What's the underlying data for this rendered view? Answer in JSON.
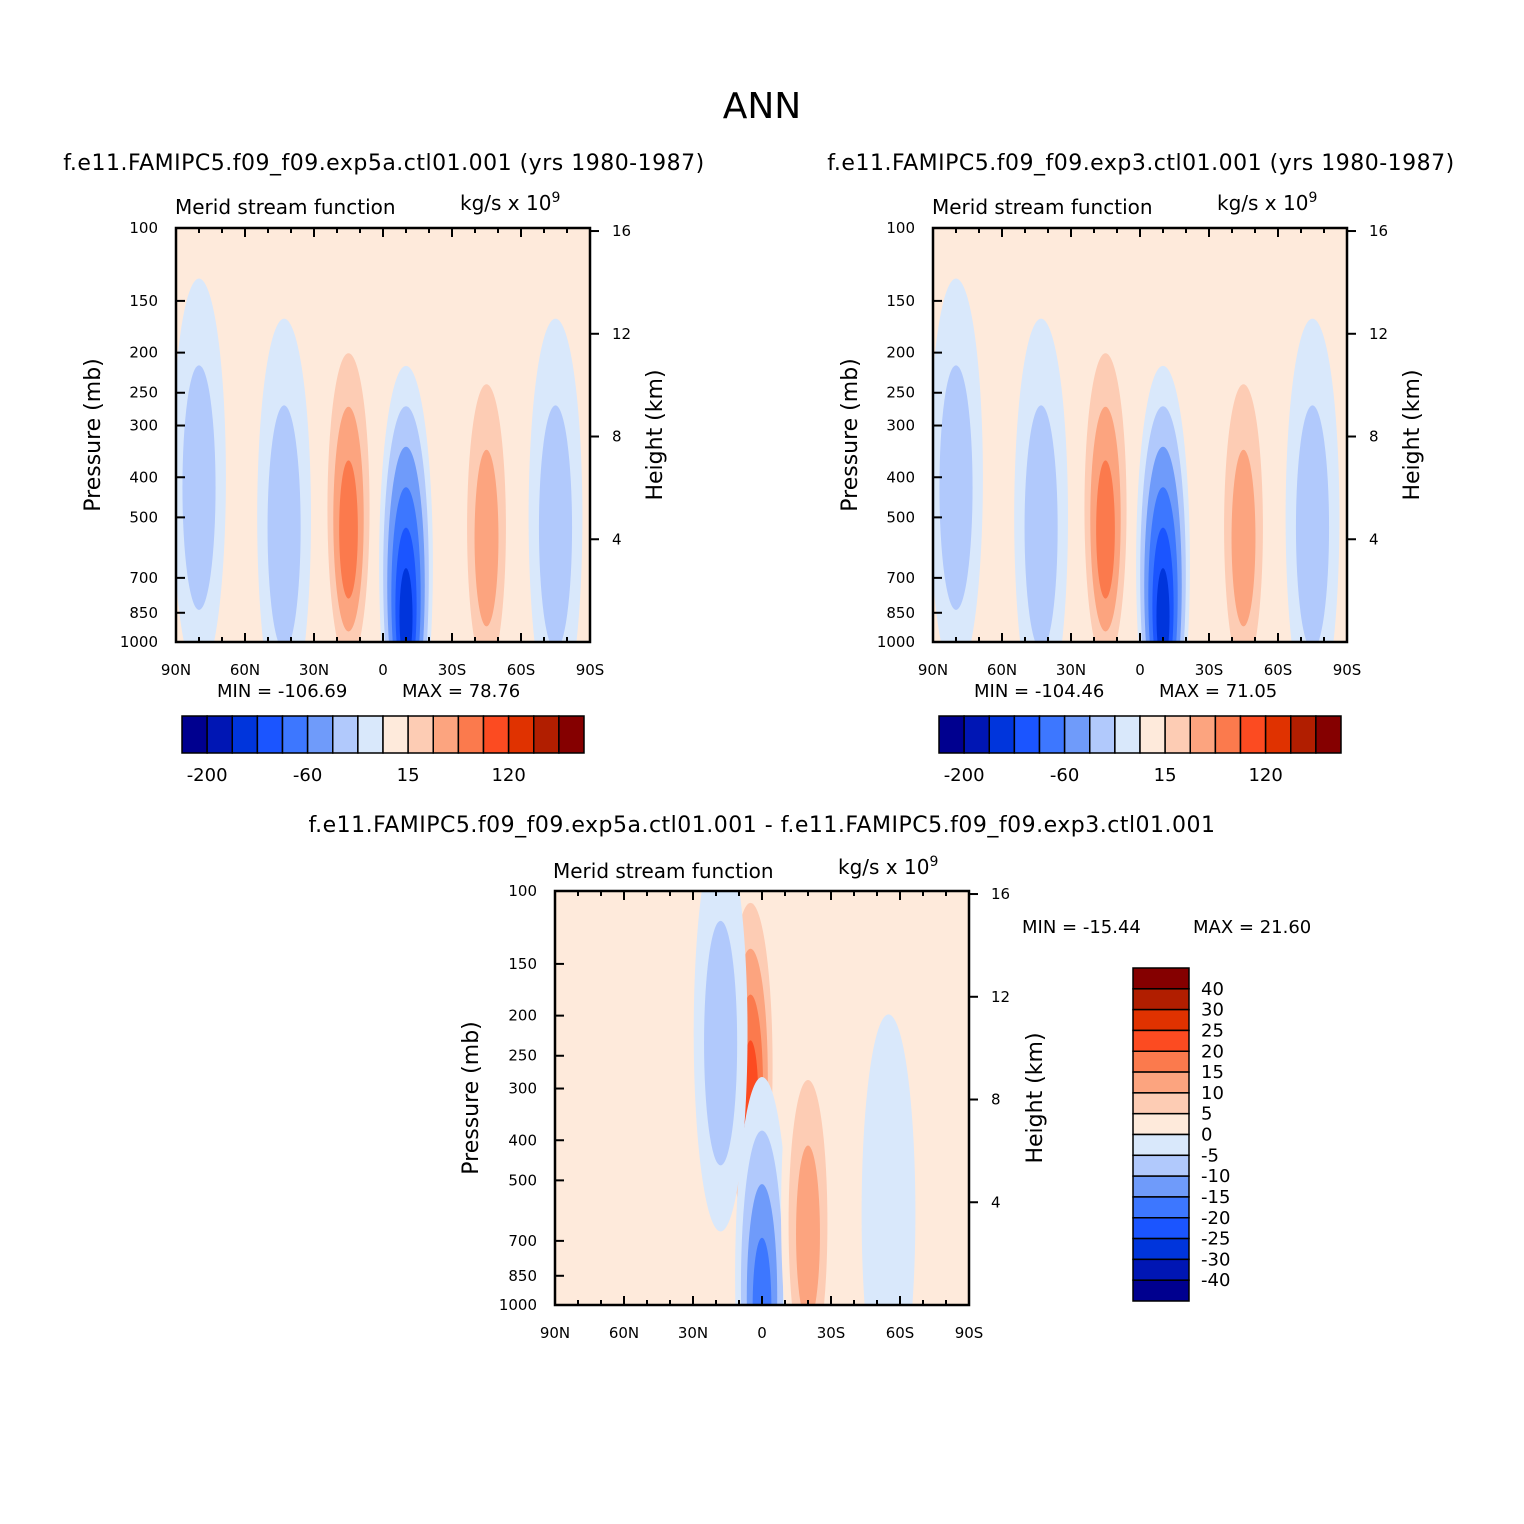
{
  "title": "ANN",
  "palette": [
    "#00008f",
    "#0016b4",
    "#0035dc",
    "#1b55ff",
    "#3d77ff",
    "#6f9bfa",
    "#b1c9fc",
    "#d9e8fb",
    "#feeadb",
    "#fdccb4",
    "#fca47f",
    "#fb7a4d",
    "#fc4b21",
    "#e03200",
    "#b11e00",
    "#850000"
  ],
  "chart_data": [
    {
      "type": "heatmap",
      "name": "panel-control-a",
      "title": "f.e11.FAMIPC5.f09_f09.exp5a.ctl01.001 (yrs 1980-1987)",
      "subtitle_left": "Merid stream function",
      "subtitle_right_base": "kg/s x 10",
      "subtitle_right_exp": "9",
      "ylabel": "Pressure (mb)",
      "ylabel_right": "Height (km)",
      "x_ticks": [
        "90N",
        "60N",
        "30N",
        "0",
        "30S",
        "60S",
        "90S"
      ],
      "y_ticks": [
        "100",
        "150",
        "200",
        "250",
        "300",
        "400",
        "500",
        "700",
        "850",
        "1000"
      ],
      "y_ticks_right": [
        "16",
        "12",
        "8",
        "4"
      ],
      "xlim": [
        90,
        -90
      ],
      "ylim": [
        1000,
        100
      ],
      "min_label": "MIN = -106.69",
      "max_label": "MAX = 78.76",
      "min": -106.69,
      "max": 78.76,
      "colorbar_labels": [
        "-200",
        "-60",
        "15",
        "120"
      ],
      "cells": [
        {
          "lat": 80,
          "p": 400,
          "level": -10
        },
        {
          "lat": 43,
          "p": 500,
          "level": -15
        },
        {
          "lat": 15,
          "p": 450,
          "level": 75
        },
        {
          "lat": -10,
          "p": 650,
          "level": -106
        },
        {
          "lat": -45,
          "p": 500,
          "level": 45
        },
        {
          "lat": -75,
          "p": 500,
          "level": -10
        }
      ]
    },
    {
      "type": "heatmap",
      "name": "panel-control-b",
      "title": "f.e11.FAMIPC5.f09_f09.exp3.ctl01.001 (yrs 1980-1987)",
      "subtitle_left": "Merid stream function",
      "subtitle_right_base": "kg/s x 10",
      "subtitle_right_exp": "9",
      "ylabel": "Pressure (mb)",
      "ylabel_right": "Height (km)",
      "x_ticks": [
        "90N",
        "60N",
        "30N",
        "0",
        "30S",
        "60S",
        "90S"
      ],
      "y_ticks": [
        "100",
        "150",
        "200",
        "250",
        "300",
        "400",
        "500",
        "700",
        "850",
        "1000"
      ],
      "y_ticks_right": [
        "16",
        "12",
        "8",
        "4"
      ],
      "xlim": [
        90,
        -90
      ],
      "ylim": [
        1000,
        100
      ],
      "min_label": "MIN = -104.46",
      "max_label": "MAX = 71.05",
      "min": -104.46,
      "max": 71.05,
      "colorbar_labels": [
        "-200",
        "-60",
        "15",
        "120"
      ],
      "cells": [
        {
          "lat": 80,
          "p": 400,
          "level": -10
        },
        {
          "lat": 43,
          "p": 500,
          "level": -15
        },
        {
          "lat": 15,
          "p": 450,
          "level": 70
        },
        {
          "lat": -10,
          "p": 650,
          "level": -104
        },
        {
          "lat": -45,
          "p": 500,
          "level": 45
        },
        {
          "lat": -75,
          "p": 500,
          "level": -10
        }
      ]
    },
    {
      "type": "heatmap",
      "name": "panel-difference",
      "title": "f.e11.FAMIPC5.f09_f09.exp5a.ctl01.001 - f.e11.FAMIPC5.f09_f09.exp3.ctl01.001",
      "subtitle_left": "Merid stream function",
      "subtitle_right_base": "kg/s x 10",
      "subtitle_right_exp": "9",
      "ylabel": "Pressure (mb)",
      "ylabel_right": "Height (km)",
      "x_ticks": [
        "90N",
        "60N",
        "30N",
        "0",
        "30S",
        "60S",
        "90S"
      ],
      "y_ticks": [
        "100",
        "150",
        "200",
        "250",
        "300",
        "400",
        "500",
        "700",
        "850",
        "1000"
      ],
      "y_ticks_right": [
        "16",
        "12",
        "8",
        "4"
      ],
      "xlim": [
        90,
        -90
      ],
      "ylim": [
        1000,
        100
      ],
      "min_label": "MIN = -15.44",
      "max_label": "MAX = 21.60",
      "min": -15.44,
      "max": 21.6,
      "colorbar_labels": [
        "40",
        "30",
        "25",
        "20",
        "15",
        "10",
        "5",
        "0",
        "-5",
        "-10",
        "-15",
        "-20",
        "-25",
        "-30",
        "-40"
      ],
      "cells": [
        {
          "lat": 5,
          "p": 250,
          "level": 21.6
        },
        {
          "lat": 0,
          "p": 850,
          "level": -15.44
        },
        {
          "lat": -20,
          "p": 600,
          "level": 10
        },
        {
          "lat": 18,
          "p": 220,
          "level": -10
        },
        {
          "lat": -55,
          "p": 600,
          "level": -5
        }
      ]
    }
  ]
}
